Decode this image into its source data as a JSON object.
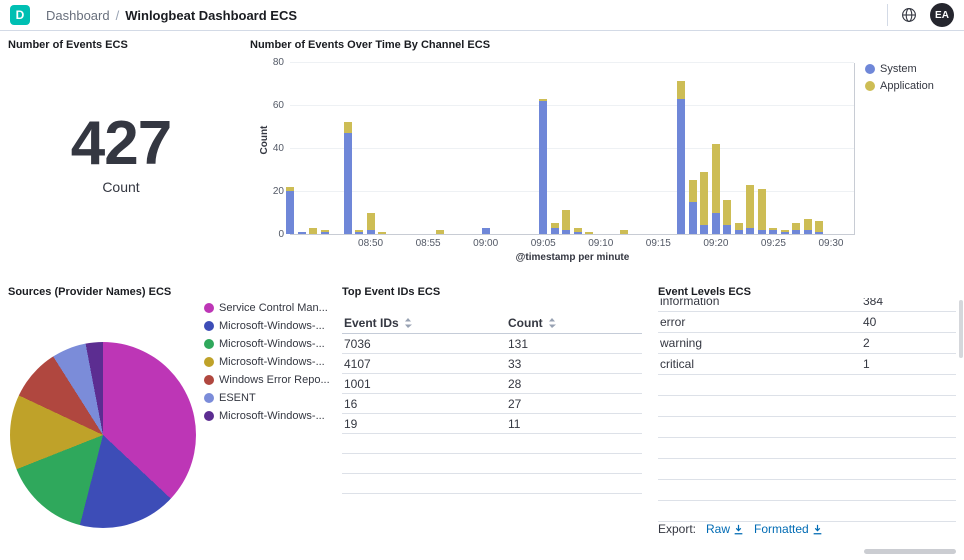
{
  "header": {
    "space_initial": "D",
    "breadcrumb_section": "Dashboard",
    "breadcrumb_separator": "/",
    "breadcrumb_current": "Winlogbeat Dashboard ECS",
    "avatar_initials": "EA",
    "colors": {
      "space_bg": "#00bfb3",
      "avatar_bg": "#25262e"
    }
  },
  "metric_panel": {
    "title": "Number of Events ECS",
    "value": "427",
    "label": "Count"
  },
  "time_panel": {
    "title": "Number of Events Over Time By Channel ECS"
  },
  "pie_panel": {
    "title": "Sources (Provider Names) ECS"
  },
  "ids_panel": {
    "title": "Top Event IDs ECS"
  },
  "levels_panel": {
    "title": "Event Levels ECS",
    "export_label": "Export:",
    "raw_label": "Raw",
    "formatted_label": "Formatted",
    "link_color": "#006bb4"
  },
  "chart_data": [
    {
      "type": "bar",
      "title": "Number of Events Over Time By Channel ECS",
      "stacked": true,
      "xlabel": "@timestamp per minute",
      "ylabel": "Count",
      "ylim": [
        0,
        80
      ],
      "yticks": [
        0,
        20,
        40,
        60,
        80
      ],
      "xticks": [
        "08:50",
        "08:55",
        "09:00",
        "09:05",
        "09:10",
        "09:15",
        "09:20",
        "09:25",
        "09:30"
      ],
      "x_domain": [
        "08:43",
        "09:32"
      ],
      "grid": true,
      "legend_position": "right",
      "series": [
        {
          "name": "System",
          "color": "#6f87d8"
        },
        {
          "name": "Application",
          "color": "#cdbd55"
        }
      ],
      "points": [
        {
          "t": "08:43",
          "system": 20,
          "application": 2
        },
        {
          "t": "08:44",
          "system": 1,
          "application": 0
        },
        {
          "t": "08:45",
          "system": 0,
          "application": 3
        },
        {
          "t": "08:46",
          "system": 1,
          "application": 1
        },
        {
          "t": "08:48",
          "system": 47,
          "application": 5
        },
        {
          "t": "08:49",
          "system": 1,
          "application": 1
        },
        {
          "t": "08:50",
          "system": 2,
          "application": 8
        },
        {
          "t": "08:51",
          "system": 0,
          "application": 1
        },
        {
          "t": "08:56",
          "system": 0,
          "application": 2
        },
        {
          "t": "09:00",
          "system": 3,
          "application": 0
        },
        {
          "t": "09:05",
          "system": 62,
          "application": 1
        },
        {
          "t": "09:06",
          "system": 3,
          "application": 2
        },
        {
          "t": "09:07",
          "system": 2,
          "application": 9
        },
        {
          "t": "09:08",
          "system": 1,
          "application": 2
        },
        {
          "t": "09:09",
          "system": 0,
          "application": 1
        },
        {
          "t": "09:12",
          "system": 0,
          "application": 2
        },
        {
          "t": "09:17",
          "system": 63,
          "application": 8
        },
        {
          "t": "09:18",
          "system": 15,
          "application": 10
        },
        {
          "t": "09:19",
          "system": 4,
          "application": 25
        },
        {
          "t": "09:20",
          "system": 10,
          "application": 32
        },
        {
          "t": "09:21",
          "system": 4,
          "application": 12
        },
        {
          "t": "09:22",
          "system": 2,
          "application": 3
        },
        {
          "t": "09:23",
          "system": 3,
          "application": 20
        },
        {
          "t": "09:24",
          "system": 2,
          "application": 19
        },
        {
          "t": "09:25",
          "system": 2,
          "application": 1
        },
        {
          "t": "09:26",
          "system": 1,
          "application": 1
        },
        {
          "t": "09:27",
          "system": 2,
          "application": 3
        },
        {
          "t": "09:28",
          "system": 2,
          "application": 5
        },
        {
          "t": "09:29",
          "system": 1,
          "application": 5
        }
      ]
    },
    {
      "type": "pie",
      "title": "Sources (Provider Names) ECS",
      "slices": [
        {
          "label": "Service Control Man...",
          "color": "#bd36b6",
          "pct": 37
        },
        {
          "label": "Microsoft-Windows-...",
          "color": "#3d4db7",
          "pct": 17
        },
        {
          "label": "Microsoft-Windows-...",
          "color": "#2fa85c",
          "pct": 15
        },
        {
          "label": "Microsoft-Windows-...",
          "color": "#bfa229",
          "pct": 13
        },
        {
          "label": "Windows Error Repo...",
          "color": "#b0473f",
          "pct": 9
        },
        {
          "label": "ESENT",
          "color": "#7b8cd9",
          "pct": 6
        },
        {
          "label": "Microsoft-Windows-...",
          "color": "#5c2d91",
          "pct": 3
        }
      ]
    },
    {
      "type": "table",
      "title": "Top Event IDs ECS",
      "columns": [
        "Event IDs",
        "Count"
      ],
      "rows": [
        [
          "7036",
          "131"
        ],
        [
          "4107",
          "33"
        ],
        [
          "1001",
          "28"
        ],
        [
          "16",
          "27"
        ],
        [
          "19",
          "11"
        ]
      ]
    },
    {
      "type": "table",
      "title": "Event Levels ECS",
      "rows": [
        [
          "information",
          "384"
        ],
        [
          "error",
          "40"
        ],
        [
          "warning",
          "2"
        ],
        [
          "critical",
          "1"
        ]
      ]
    }
  ]
}
